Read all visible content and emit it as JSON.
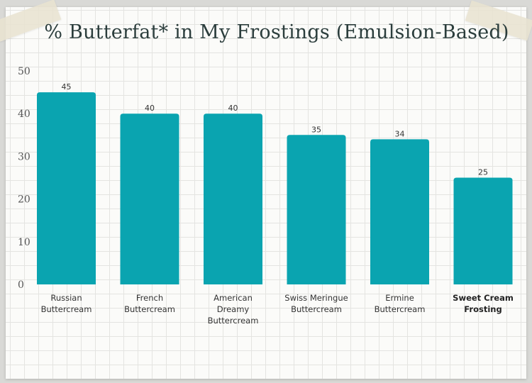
{
  "chart_data": {
    "type": "bar",
    "title": "% Butterfat* in My Frostings (Emulsion-Based)",
    "xlabel": "",
    "ylabel": "",
    "ylim": [
      0,
      50
    ],
    "yticks": [
      0,
      10,
      20,
      30,
      40,
      50
    ],
    "grid": true,
    "bar_color": "#0aa4b0",
    "categories": [
      "Russian Buttercream",
      "French Buttercream",
      "American Dreamy Buttercream",
      "Swiss Meringue Buttercream",
      "Ermine Buttercream",
      "Sweet Cream Frosting"
    ],
    "category_lines": [
      [
        "Russian",
        "Buttercream"
      ],
      [
        "French",
        "Buttercream"
      ],
      [
        "American",
        "Dreamy",
        "Buttercream"
      ],
      [
        "Swiss Meringue",
        "Buttercream"
      ],
      [
        "Ermine",
        "Buttercream"
      ],
      [
        "Sweet Cream",
        "Frosting"
      ]
    ],
    "highlighted": [
      false,
      false,
      false,
      false,
      false,
      true
    ],
    "values": [
      45,
      40,
      40,
      35,
      34,
      25
    ]
  }
}
